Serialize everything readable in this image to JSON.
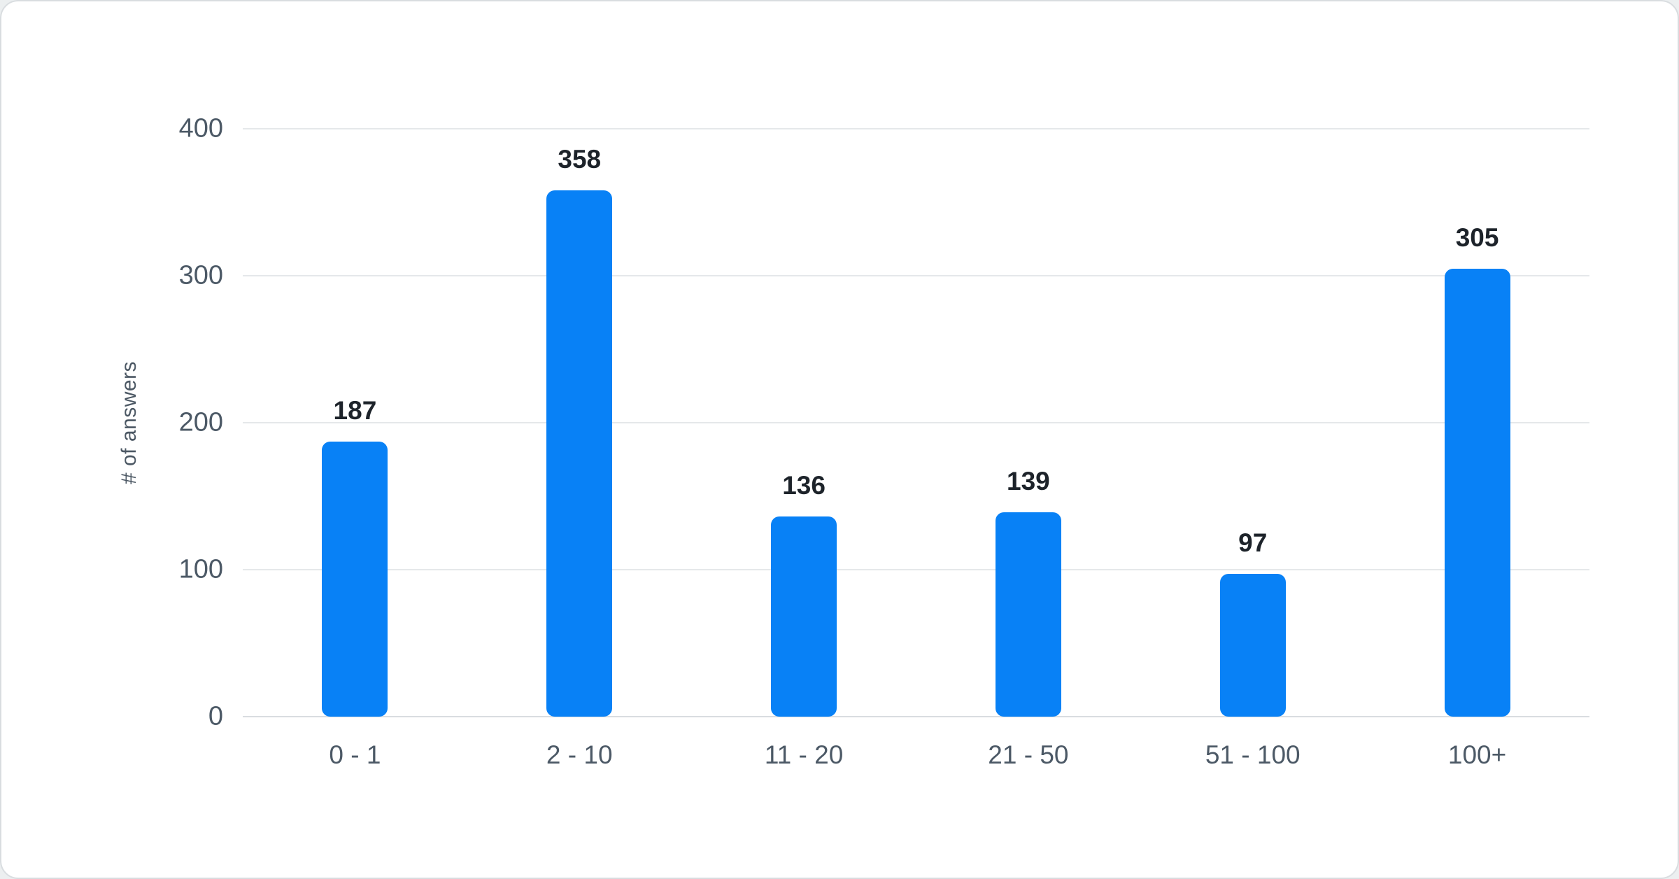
{
  "chart_data": {
    "type": "bar",
    "categories": [
      "0 - 1",
      "2 - 10",
      "11 - 20",
      "21 - 50",
      "51 - 100",
      "100+"
    ],
    "values": [
      187,
      358,
      136,
      139,
      97,
      305
    ],
    "title": "",
    "xlabel": "",
    "ylabel": "# of answers",
    "ylim": [
      0,
      400
    ],
    "yticks": [
      0,
      100,
      200,
      300,
      400
    ],
    "grid": true,
    "legend_position": "none",
    "colors": {
      "bar": "#0881f6",
      "value_label": "#1d232a",
      "axis_text": "#4c5966",
      "gridline": "#e5e8ea",
      "zero_line": "#d9dde0",
      "card_background": "#ffffff",
      "card_border": "#d9dde0"
    }
  }
}
